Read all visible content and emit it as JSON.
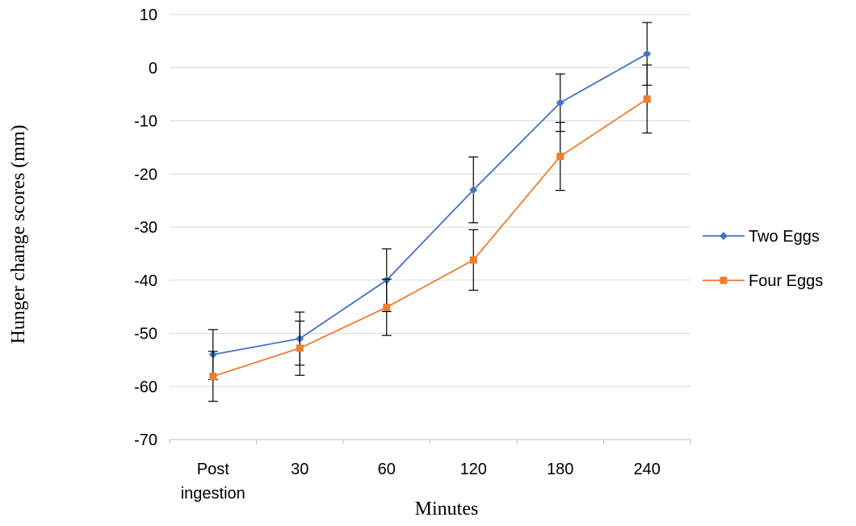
{
  "chart_data": {
    "type": "line",
    "title": "",
    "xlabel": "Minutes",
    "ylabel": "Hunger change scores (mm)",
    "categories": [
      [
        "Post",
        "ingestion"
      ],
      [
        "30"
      ],
      [
        "60"
      ],
      [
        "120"
      ],
      [
        "180"
      ],
      [
        "240"
      ]
    ],
    "ylim": [
      -70,
      10
    ],
    "yticks": [
      10,
      0,
      -10,
      -20,
      -30,
      -40,
      -50,
      -60,
      -70
    ],
    "grid": true,
    "legend_position": "right",
    "series": [
      {
        "name": "Two Eggs",
        "color": "#4472C4",
        "marker": "diamond",
        "values": [
          -54,
          -51,
          -40,
          -23,
          -6.6,
          2.6
        ],
        "errors": [
          4.7,
          5.0,
          5.9,
          6.2,
          5.4,
          5.9
        ]
      },
      {
        "name": "Four Eggs",
        "color": "#ED7D31",
        "marker": "square",
        "values": [
          -58.1,
          -52.8,
          -45.1,
          -36.2,
          -16.7,
          -5.9
        ],
        "errors": [
          4.7,
          5.1,
          5.3,
          5.7,
          6.4,
          6.4
        ]
      }
    ]
  }
}
